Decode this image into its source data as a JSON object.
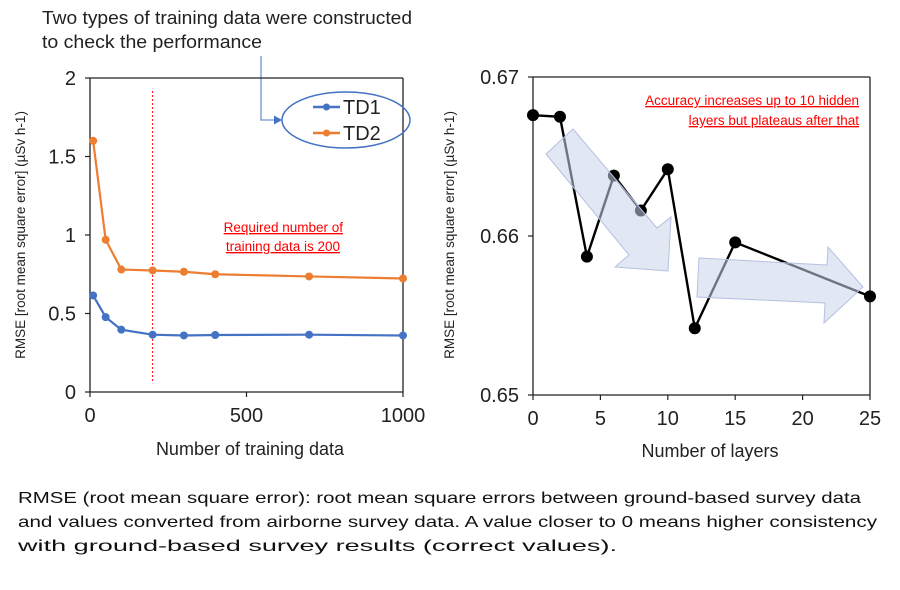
{
  "annotation_top": {
    "lines": [
      "Two types of training data were constructed",
      "to check the performance"
    ],
    "color": "#4472c4"
  },
  "caption": {
    "lines": [
      "RMSE (root mean square error): root mean square errors between ground-based survey data",
      "and values converted from airborne survey data. A value closer to 0 means higher consistency",
      "with ground-based survey results (correct values)."
    ]
  },
  "chart_data": [
    {
      "type": "line",
      "xlabel": "Number of training data",
      "ylabel": "RMSE [root mean square error] (µSv h-1)",
      "xlim": [
        0,
        1000
      ],
      "ylim": [
        0,
        2
      ],
      "xticks": [
        "0",
        "500",
        "1000"
      ],
      "yticks": [
        "0",
        "0.5",
        "1",
        "1.5",
        "2"
      ],
      "xtick_values": [
        0,
        500,
        1000
      ],
      "ytick_values": [
        0,
        0.5,
        1,
        1.5,
        2
      ],
      "grid": false,
      "legend": "top-right",
      "x": [
        10,
        50,
        100,
        200,
        300,
        400,
        700,
        1000
      ],
      "series": [
        {
          "name": "TD1",
          "color": "#4472c4",
          "values": [
            0.615,
            0.477,
            0.397,
            0.365,
            0.36,
            0.363,
            0.365,
            0.36
          ]
        },
        {
          "name": "TD2",
          "color": "#ed7d31",
          "values": [
            1.6,
            0.97,
            0.78,
            0.774,
            0.766,
            0.75,
            0.736,
            0.723
          ]
        }
      ],
      "reference_line": {
        "x": 200,
        "color": "#ff0000"
      },
      "annotation": [
        "Required number of",
        "training data is 200"
      ]
    },
    {
      "type": "line",
      "xlabel": "Number of layers",
      "ylabel": "RMSE [root mean square error] (µSv h-1)",
      "xlim": [
        0,
        25
      ],
      "ylim": [
        0.65,
        0.67
      ],
      "xticks": [
        "0",
        "5",
        "10",
        "15",
        "20",
        "25"
      ],
      "yticks": [
        "0.65",
        "0.66",
        "0.67"
      ],
      "xtick_values": [
        0,
        5,
        10,
        15,
        20,
        25
      ],
      "ytick_values": [
        0.65,
        0.66,
        0.67
      ],
      "grid": false,
      "x": [
        0,
        2,
        4,
        6,
        8,
        10,
        12,
        15,
        25
      ],
      "series": [
        {
          "color": "#000000",
          "values": [
            0.6676,
            0.6675,
            0.6587,
            0.6638,
            0.6616,
            0.6642,
            0.6542,
            0.6596,
            0.6562
          ]
        }
      ],
      "annotation": [
        "Accuracy increases up to 10 hidden",
        "layers but plateaus after that"
      ],
      "trend_arrows": [
        "downward",
        "flat"
      ]
    }
  ]
}
